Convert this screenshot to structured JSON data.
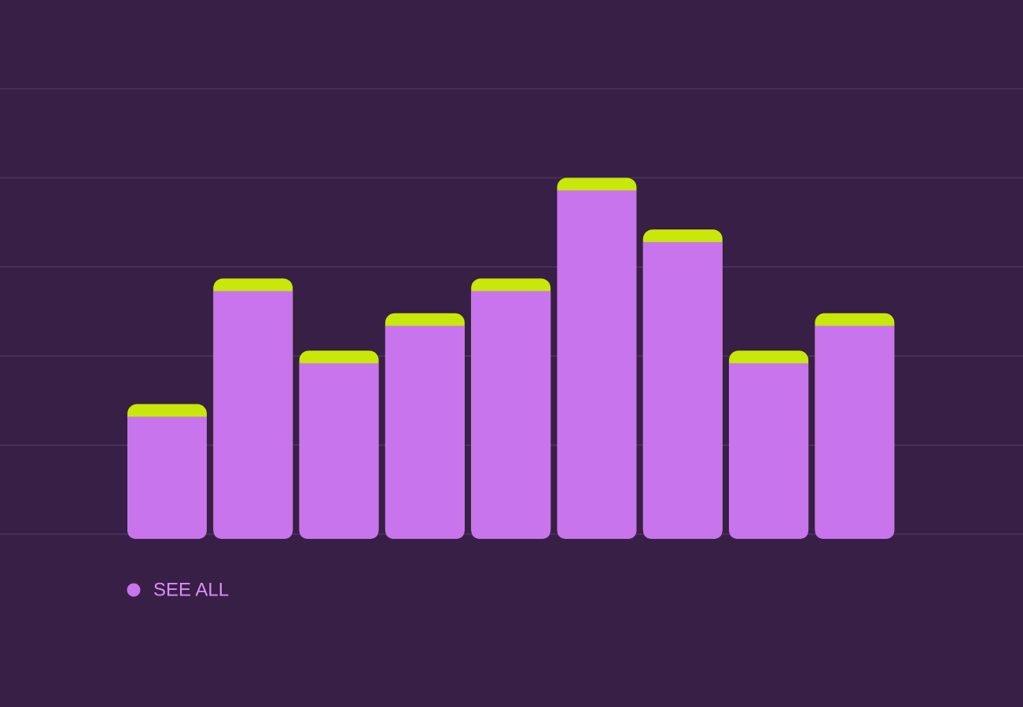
{
  "chart_data": {
    "type": "bar",
    "categories": [
      null,
      null,
      null,
      null,
      null,
      null,
      null,
      null,
      null
    ],
    "series": [
      {
        "name": "SEE ALL",
        "color": "#c874ec",
        "values": [
          1.46,
          2.87,
          2.06,
          2.48,
          2.87,
          4.0,
          3.42,
          2.06,
          2.48
        ]
      }
    ],
    "accent_color": "#c8e80a",
    "ylim": [
      0,
      5
    ],
    "yticks": [
      0,
      1,
      2,
      3,
      4,
      5
    ],
    "grid": true
  }
}
